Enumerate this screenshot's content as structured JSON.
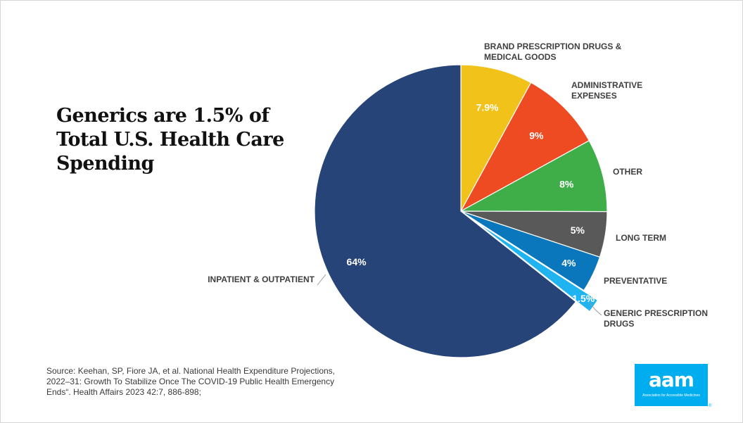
{
  "title_lines": [
    "Generics are 1.5% of",
    "Total U.S. Health Care",
    "Spending"
  ],
  "source_lines": [
    "Source: Keehan, SP, Fiore JA, et al. National Health Expenditure Projections,",
    "2022–31: Growth To Stabilize Once The COVID-19 Public Health Emergency",
    "Ends“. Health Affairs 2023 42:7, 886-898;"
  ],
  "logo": {
    "text": "aam",
    "subtitle": "Association for Accessible Medicines",
    "registered": "®",
    "color": "#00aeef"
  },
  "chart_data": {
    "type": "pie",
    "start": "12 o'clock, clockwise",
    "slices": [
      {
        "label_lines": [
          "BRAND PRESCRIPTION DRUGS &",
          "MEDICAL GOODS"
        ],
        "value": 7.9,
        "value_label": "7.9%",
        "color": "#f0c21a",
        "exploded": false
      },
      {
        "label_lines": [
          "ADMINISTRATIVE",
          "EXPENSES"
        ],
        "value": 9,
        "value_label": "9%",
        "color": "#ef4b23",
        "exploded": false
      },
      {
        "label_lines": [
          "OTHER"
        ],
        "value": 8,
        "value_label": "8%",
        "color": "#3fae49",
        "exploded": false
      },
      {
        "label_lines": [
          "LONG TERM"
        ],
        "value": 5,
        "value_label": "5%",
        "color": "#595959",
        "exploded": false
      },
      {
        "label_lines": [
          "PREVENTATIVE"
        ],
        "value": 4,
        "value_label": "4%",
        "color": "#0a77bd",
        "exploded": false
      },
      {
        "label_lines": [
          "GENERIC PRESCRIPTION",
          "DRUGS"
        ],
        "value": 1.5,
        "value_label": "1.5%",
        "color": "#1fb3ef",
        "exploded": true
      },
      {
        "label_lines": [
          "INPATIENT & OUTPATIENT"
        ],
        "value": 64,
        "value_label": "64%",
        "color": "#264478",
        "exploded": false
      }
    ]
  }
}
